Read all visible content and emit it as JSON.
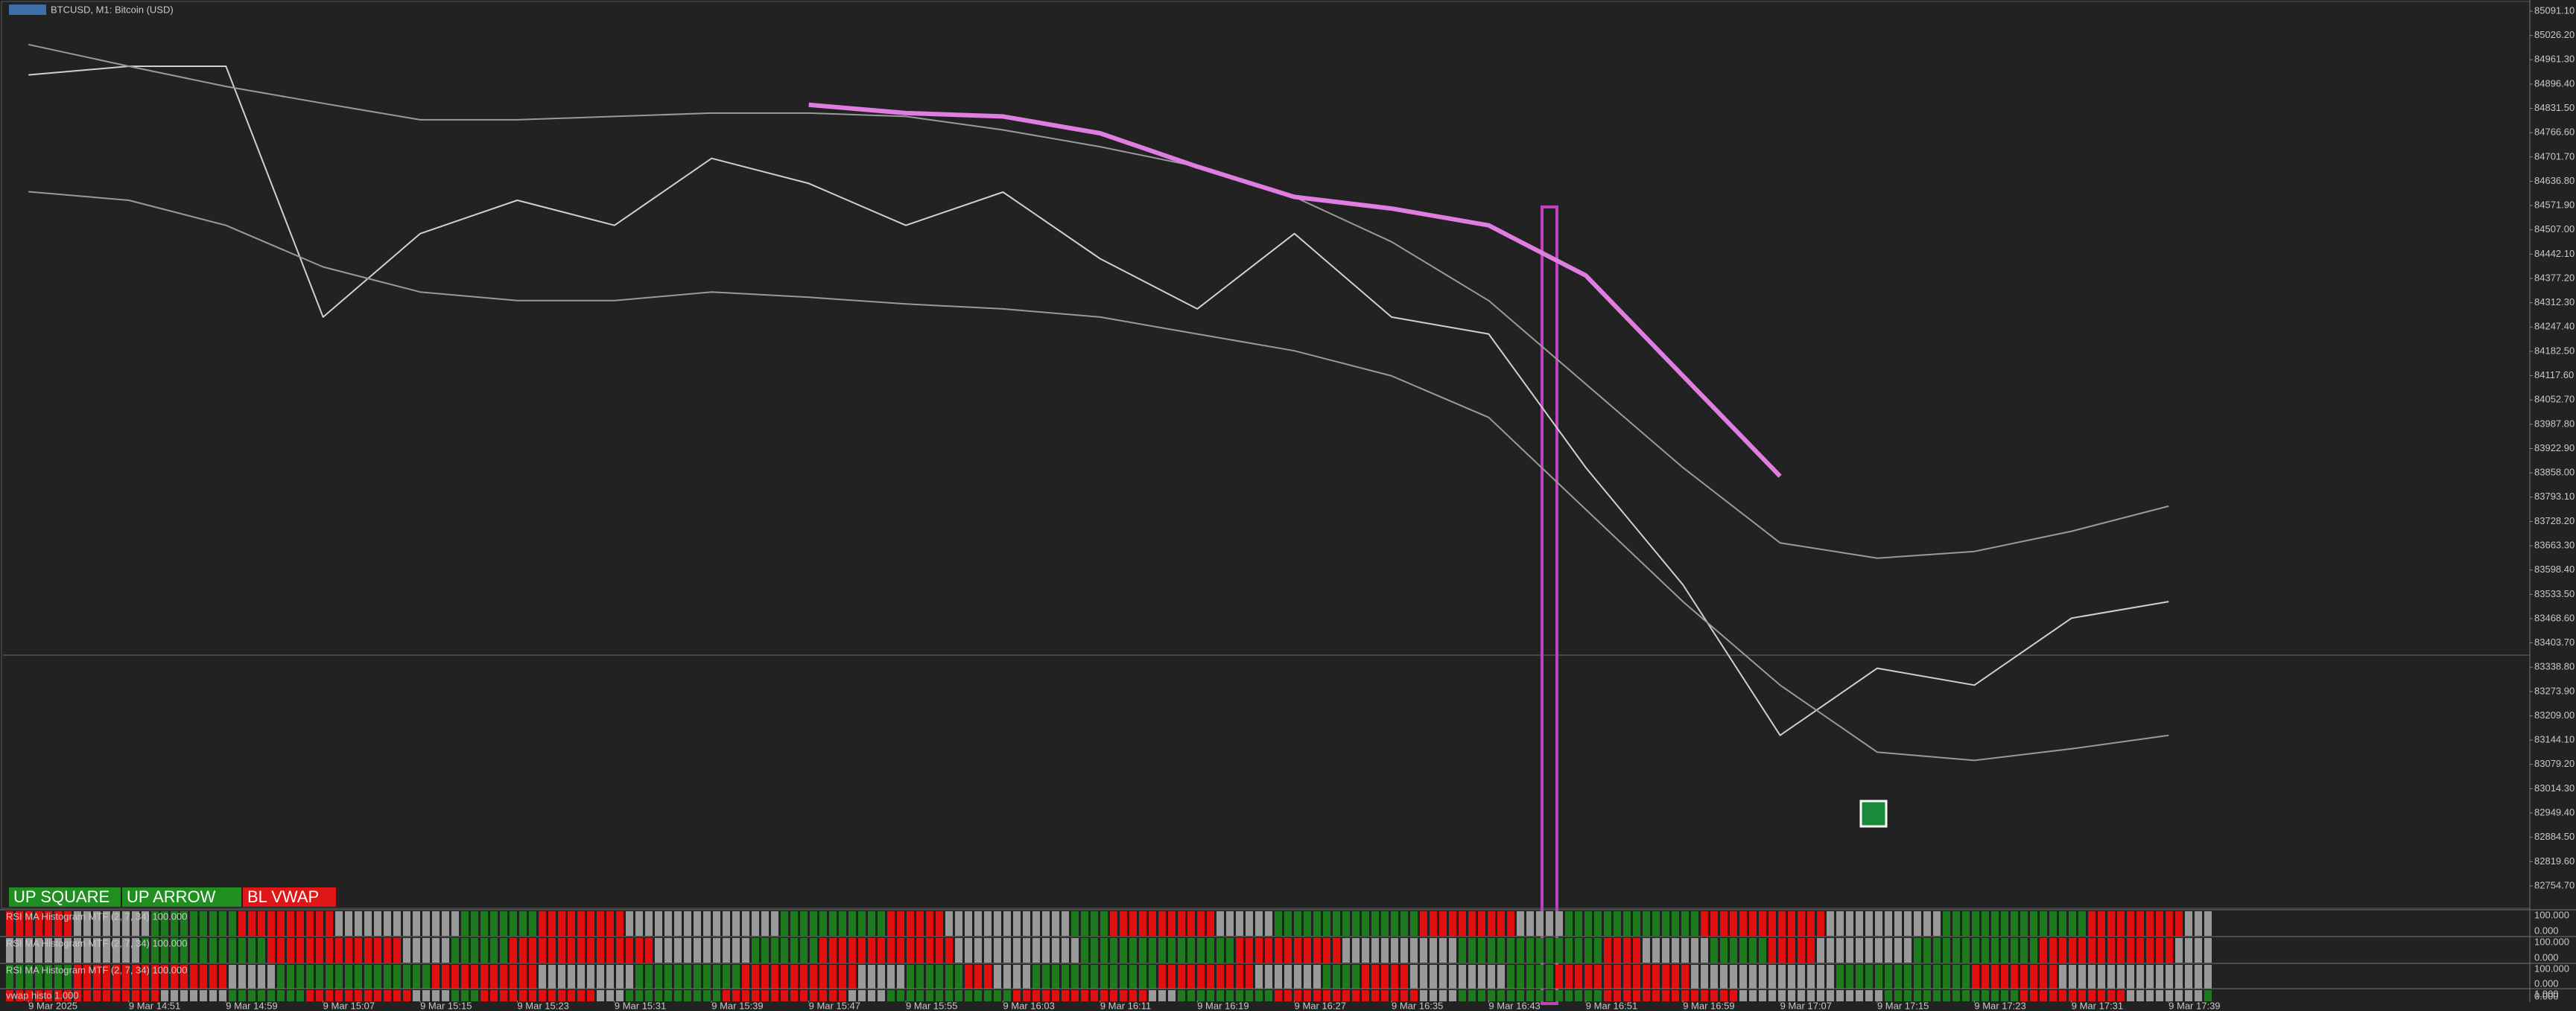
{
  "title": "BTCUSD, M1: Bitcoin (USD)",
  "buttons": [
    "UP SQUARE",
    "UP ARROW",
    "BL VWAP"
  ],
  "panels": [
    {
      "label": "RSI MA Histogram MTF (2, 7, 34) 100.000",
      "max_label": "100.000",
      "min_label": "0.000"
    },
    {
      "label": "RSI MA Histogram MTF (2, 7, 34) 100.000",
      "max_label": "100.000",
      "min_label": "0.000"
    },
    {
      "label": "RSI MA Histogram MTF (2, 7, 34) 100.000",
      "max_label": "100.000",
      "min_label": "0.000"
    },
    {
      "label": "vwap histo 1.000",
      "max_label": "1.000",
      "min_label": "0.000"
    }
  ],
  "chart_data": {
    "type": "line",
    "categories": [
      "9 Mar 2025",
      "9 Mar 14:51",
      "9 Mar 14:59",
      "9 Mar 15:07",
      "9 Mar 15:15",
      "9 Mar 15:23",
      "9 Mar 15:31",
      "9 Mar 15:39",
      "9 Mar 15:47",
      "9 Mar 15:55",
      "9 Mar 16:03",
      "9 Mar 16:11",
      "9 Mar 16:19",
      "9 Mar 16:27",
      "9 Mar 16:35",
      "9 Mar 16:43",
      "9 Mar 16:51",
      "9 Mar 16:59",
      "9 Mar 17:07",
      "9 Mar 17:15",
      "9 Mar 17:23",
      "9 Mar 17:31",
      "9 Mar 17:39"
    ],
    "series": [
      {
        "color": "#d0d0d0",
        "values": [
          84921,
          84944,
          84944,
          84274,
          84497,
          84586,
          84519,
          84698,
          84631,
          84519,
          84608,
          84430,
          84296,
          84497,
          84274,
          84229,
          83872,
          83559,
          83157,
          83336,
          83291,
          83470,
          83514
        ]
      },
      {
        "color": "#9a9a9a",
        "values": [
          85002,
          84944,
          84890,
          84845,
          84801,
          84801,
          84810,
          84819,
          84819,
          84810,
          84774,
          84729,
          84676,
          84595,
          84475,
          84318,
          84095,
          83872,
          83671,
          83630,
          83648,
          83702,
          83769
        ]
      },
      {
        "color": "#9a9a9a",
        "values": [
          84609,
          84586,
          84519,
          84408,
          84341,
          84318,
          84318,
          84341,
          84327,
          84309,
          84296,
          84274,
          84229,
          84184,
          84117,
          84006,
          83760,
          83514,
          83291,
          83112,
          83090,
          83121,
          83157
        ]
      },
      {
        "color": "#e07de0",
        "values": [
          null,
          null,
          null,
          null,
          null,
          null,
          null,
          null,
          84841,
          84819,
          84810,
          84765,
          84676,
          84595,
          84564,
          84519,
          84385,
          84117,
          83849,
          null,
          null,
          null,
          null
        ]
      }
    ],
    "ylim": [
      82697,
      85113
    ],
    "yticks": [
      {
        "value": 85091.1,
        "label": "85091.10"
      },
      {
        "value": 85026.2,
        "label": "85026.20"
      },
      {
        "value": 84961.3,
        "label": "84961.30"
      },
      {
        "value": 84896.4,
        "label": "84896.40"
      },
      {
        "value": 84831.5,
        "label": "84831.50"
      },
      {
        "value": 84766.6,
        "label": "84766.60"
      },
      {
        "value": 84701.7,
        "label": "84701.70"
      },
      {
        "value": 84636.8,
        "label": "84636.80"
      },
      {
        "value": 84571.9,
        "label": "84571.90"
      },
      {
        "value": 84507,
        "label": "84507.00"
      },
      {
        "value": 84442.1,
        "label": "84442.10"
      },
      {
        "value": 84377.2,
        "label": "84377.20"
      },
      {
        "value": 84312.3,
        "label": "84312.30"
      },
      {
        "value": 84247.4,
        "label": "84247.40"
      },
      {
        "value": 84182.5,
        "label": "84182.50"
      },
      {
        "value": 84117.6,
        "label": "84117.60"
      },
      {
        "value": 84052.7,
        "label": "84052.70"
      },
      {
        "value": 83987.8,
        "label": "83987.80"
      },
      {
        "value": 83922.9,
        "label": "83922.90"
      },
      {
        "value": 83858,
        "label": "83858.00"
      },
      {
        "value": 83793.1,
        "label": "83793.10"
      },
      {
        "value": 83728.2,
        "label": "83728.20"
      },
      {
        "value": 83663.3,
        "label": "83663.30"
      },
      {
        "value": 83598.4,
        "label": "83598.40"
      },
      {
        "value": 83533.5,
        "label": "83533.50"
      },
      {
        "value": 83468.6,
        "label": "83468.60"
      },
      {
        "value": 83403.7,
        "label": "83403.70"
      },
      {
        "value": 83338.8,
        "label": "83338.80"
      },
      {
        "value": 83273.9,
        "label": "83273.90"
      },
      {
        "value": 83209,
        "label": "83209.00"
      },
      {
        "value": 83144.1,
        "label": "83144.10"
      },
      {
        "value": 83079.2,
        "label": "83079.20"
      },
      {
        "value": 83014.3,
        "label": "83014.30"
      },
      {
        "value": 82949.4,
        "label": "82949.40"
      },
      {
        "value": 82884.5,
        "label": "82884.50"
      },
      {
        "value": 82819.6,
        "label": "82819.60"
      },
      {
        "value": 82754.7,
        "label": "82754.70"
      }
    ],
    "grid": false
  }
}
